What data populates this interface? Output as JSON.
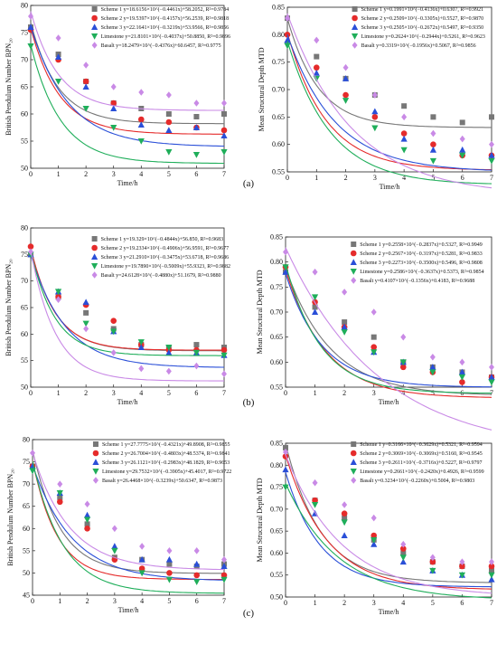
{
  "colors": {
    "Scheme 1": "#777777",
    "Scheme 2": "#e52b2b",
    "Scheme 3": "#2a4fd8",
    "Limestone": "#1fae5a",
    "Basalt": "#c98ae6"
  },
  "panel_labels": [
    "(a)",
    "(b)",
    "(c)"
  ],
  "chart_data": [
    {
      "type": "scatter",
      "panel": "a-left",
      "xlabel": "Time/h",
      "ylabel": "British Pendulum Number BPN₂₀",
      "xlim": [
        0,
        7
      ],
      "ylim": [
        50,
        80
      ],
      "xticks": [
        0,
        1,
        2,
        3,
        4,
        5,
        6,
        7
      ],
      "yticks": [
        50,
        55,
        60,
        65,
        70,
        75,
        80
      ],
      "legend_position": "top-right",
      "x": [
        0,
        1,
        2,
        3,
        4,
        5,
        6,
        7
      ],
      "series": [
        {
          "name": "Scheme 1",
          "eq": "y=18.6156×10^(−0.4461x)+58.2052,  R²=0.9784",
          "a": 18.6156,
          "b": 0.4461,
          "c": 58.2052,
          "values": [
            76,
            71,
            66,
            62,
            61,
            60,
            59.5,
            60
          ]
        },
        {
          "name": "Scheme 2",
          "eq": "y=19.5397×10^(−0.4157x)+56.2539,  R²=0.9818",
          "a": 19.5397,
          "b": 0.4157,
          "c": 56.2539,
          "values": [
            75.5,
            70,
            66,
            62,
            59,
            58.5,
            57.5,
            57
          ]
        },
        {
          "name": "Scheme 3",
          "eq": "y=22.1641×10^(−0.3219x)+53.9566,  R²=0.9856",
          "a": 22.1641,
          "b": 0.3219,
          "c": 53.9566,
          "values": [
            76,
            70.5,
            65,
            61,
            58,
            57,
            57.5,
            56
          ]
        },
        {
          "name": "Limestone",
          "eq": "y=21.8101×10^(−0.4037x)+50.8850,  R²=0.9896",
          "a": 21.8101,
          "b": 0.4037,
          "c": 50.885,
          "values": [
            72.5,
            66,
            61,
            57.5,
            55,
            53,
            52.5,
            53
          ]
        },
        {
          "name": "Basalt",
          "eq": "y=18.2479×10^(−0.4376x)+60.6457,  R²=0.9775",
          "a": 18.2479,
          "b": 0.4376,
          "c": 60.6457,
          "values": [
            78,
            74,
            69,
            65,
            64,
            63.5,
            62,
            62
          ]
        }
      ]
    },
    {
      "type": "scatter",
      "panel": "a-right",
      "xlabel": "Time/h",
      "ylabel": "Mean Structural Depth MTD",
      "xlim": [
        0,
        7
      ],
      "ylim": [
        0.55,
        0.85
      ],
      "xticks": [
        0,
        1,
        2,
        3,
        4,
        5,
        6,
        7
      ],
      "yticks": [
        0.55,
        0.6,
        0.65,
        0.7,
        0.75,
        0.8,
        0.85
      ],
      "legend_position": "top-right",
      "x": [
        0,
        1,
        2,
        3,
        4,
        5,
        6,
        7
      ],
      "series": [
        {
          "name": "Scheme 1",
          "eq": "y=0.1991×10^(−0.4136x)+0.6307,  R²=0.9921",
          "a": 0.1991,
          "b": 0.4136,
          "c": 0.6307,
          "values": [
            0.83,
            0.76,
            0.72,
            0.69,
            0.67,
            0.65,
            0.64,
            0.65
          ]
        },
        {
          "name": "Scheme 2",
          "eq": "y=0.2509×10^(−0.3305x)+0.5527,  R²=0.9870",
          "a": 0.2509,
          "b": 0.3305,
          "c": 0.5527,
          "values": [
            0.8,
            0.74,
            0.69,
            0.65,
            0.62,
            0.6,
            0.58,
            0.58
          ]
        },
        {
          "name": "Scheme 3",
          "eq": "y=0.2505×10^(−0.2672x)+0.5497,  R²=0.9350",
          "a": 0.2505,
          "b": 0.2672,
          "c": 0.5497,
          "values": [
            0.79,
            0.73,
            0.72,
            0.66,
            0.61,
            0.59,
            0.59,
            0.58
          ]
        },
        {
          "name": "Limestone",
          "eq": "y=0.2624×10^(−0.2944x)+0.5261,  R²=0.9623",
          "a": 0.2624,
          "b": 0.2944,
          "c": 0.5261,
          "values": [
            0.78,
            0.72,
            0.68,
            0.63,
            0.59,
            0.57,
            0.58,
            0.57
          ]
        },
        {
          "name": "Basalt",
          "eq": "y=0.3319×10^(−0.1956x)+0.5067,  R²=0.9856",
          "a": 0.3319,
          "b": 0.1956,
          "c": 0.5067,
          "values": [
            0.83,
            0.79,
            0.74,
            0.69,
            0.65,
            0.62,
            0.61,
            0.6
          ]
        }
      ]
    },
    {
      "type": "scatter",
      "panel": "b-left",
      "xlabel": "Time/h",
      "ylabel": "British Pendulum Number BPN₂₀",
      "xlim": [
        0,
        7
      ],
      "ylim": [
        50,
        80
      ],
      "xticks": [
        0,
        1,
        2,
        3,
        4,
        5,
        6,
        7
      ],
      "yticks": [
        50,
        55,
        60,
        65,
        70,
        75,
        80
      ],
      "legend_position": "top-right",
      "x": [
        0,
        1,
        2,
        3,
        4,
        5,
        6,
        7
      ],
      "series": [
        {
          "name": "Scheme 1",
          "eq": "y=19.329×10^(−0.4844x)+56.850,  R²=0.9683",
          "a": 19.329,
          "b": 0.4844,
          "c": 56.85,
          "values": [
            75,
            67,
            64,
            61,
            58,
            57.5,
            58,
            57.5
          ]
        },
        {
          "name": "Scheme 2",
          "eq": "y=19.2334×10^(−0.4906x)+56.9591,  R²=0.9677",
          "a": 19.2334,
          "b": 0.4906,
          "c": 56.9591,
          "values": [
            76.5,
            67,
            65.5,
            62.5,
            58,
            57,
            57,
            57
          ]
        },
        {
          "name": "Scheme 3",
          "eq": "y=21.2910×10^(−0.3475x)+53.6718,  R²=0.9686",
          "a": 21.291,
          "b": 0.3475,
          "c": 53.6718,
          "values": [
            75,
            68,
            66,
            60.5,
            57.5,
            56.5,
            56.5,
            56
          ]
        },
        {
          "name": "Limestone",
          "eq": "y=19.7890×10^(−0.5009x)+55.9323,  R²=0.9882",
          "a": 19.789,
          "b": 0.5009,
          "c": 55.9323,
          "values": [
            75,
            68,
            62,
            60.5,
            58.5,
            57.5,
            56.5,
            56
          ]
        },
        {
          "name": "Basalt",
          "eq": "y=24.6128×10^(−0.4880x)+51.1679,  R²=0.9880",
          "a": 24.6128,
          "b": 0.488,
          "c": 51.1679,
          "values": [
            75.5,
            66.5,
            61,
            56.5,
            53.5,
            53,
            54,
            52.5
          ]
        }
      ]
    },
    {
      "type": "scatter",
      "panel": "b-right",
      "xlabel": "Time/h",
      "ylabel": "Mean Structural Depth MTD",
      "xlim": [
        0,
        7
      ],
      "ylim": [
        0.55,
        0.85
      ],
      "xticks": [
        0,
        1,
        2,
        3,
        4,
        5,
        6,
        7
      ],
      "yticks": [
        0.55,
        0.6,
        0.65,
        0.7,
        0.75,
        0.8,
        0.85
      ],
      "legend_position": "top-right",
      "x": [
        0,
        1,
        2,
        3,
        4,
        5,
        6,
        7
      ],
      "series": [
        {
          "name": "Scheme 1",
          "eq": "y=0.2558×10^(−0.2837x)+0.5327,  R²=0.9949",
          "a": 0.2558,
          "b": 0.2837,
          "c": 0.5327,
          "values": [
            0.78,
            0.71,
            0.68,
            0.65,
            0.6,
            0.59,
            0.58,
            0.57
          ]
        },
        {
          "name": "Scheme 2",
          "eq": "y=0.2567×10^(−0.3197x)+0.5281,  R²=0.9833",
          "a": 0.2567,
          "b": 0.3197,
          "c": 0.5281,
          "values": [
            0.79,
            0.72,
            0.67,
            0.63,
            0.59,
            0.58,
            0.56,
            0.57
          ]
        },
        {
          "name": "Scheme 3",
          "eq": "y=0.2273×10^(−0.3500x)+0.5496,  R²=0.9808",
          "a": 0.2273,
          "b": 0.35,
          "c": 0.5496,
          "values": [
            0.78,
            0.7,
            0.67,
            0.62,
            0.6,
            0.59,
            0.58,
            0.57
          ]
        },
        {
          "name": "Limestone",
          "eq": "y=0.2586×10^(−0.3637x)+0.5373,  R²=0.9854",
          "a": 0.2586,
          "b": 0.3637,
          "c": 0.5373,
          "values": [
            0.79,
            0.73,
            0.66,
            0.62,
            0.6,
            0.58,
            0.57,
            0.56
          ]
        },
        {
          "name": "Basalt",
          "eq": "y=0.4107×10^(−0.1356x)+0.4183,  R²=0.9688",
          "a": 0.4107,
          "b": 0.1356,
          "c": 0.4183,
          "values": [
            0.82,
            0.78,
            0.74,
            0.7,
            0.65,
            0.61,
            0.6,
            0.59
          ]
        }
      ]
    },
    {
      "type": "scatter",
      "panel": "c-left",
      "xlabel": "Time/h",
      "ylabel": "British Pendulum Number BPN₂₀",
      "xlim": [
        0,
        7
      ],
      "ylim": [
        45,
        80
      ],
      "xticks": [
        0,
        1,
        2,
        3,
        4,
        5,
        6,
        7
      ],
      "yticks": [
        45,
        50,
        55,
        60,
        65,
        70,
        75,
        80
      ],
      "legend_position": "top-right",
      "x": [
        0,
        1,
        2,
        3,
        4,
        5,
        6,
        7
      ],
      "series": [
        {
          "name": "Scheme 1",
          "eq": "y=27.7775×10^(−0.4321x)+49.8908,  R²=0.9855",
          "a": 27.7775,
          "b": 0.4321,
          "c": 49.8908,
          "values": [
            74,
            67,
            61,
            53.5,
            53,
            52,
            51.5,
            52
          ]
        },
        {
          "name": "Scheme 2",
          "eq": "y=26.7004×10^(−0.4803x)+48.5374,  R²=0.9841",
          "a": 26.7004,
          "b": 0.4803,
          "c": 48.5374,
          "values": [
            74,
            66,
            60,
            53,
            51,
            50,
            49.5,
            49.5
          ]
        },
        {
          "name": "Scheme 3",
          "eq": "y=26.1121×10^(−0.2983x)+48.1829,  R²=0.9653",
          "a": 26.1121,
          "b": 0.2983,
          "c": 48.1829,
          "values": [
            74,
            68,
            63,
            56,
            53,
            53,
            52,
            51.5
          ]
        },
        {
          "name": "Limestone",
          "eq": "y=29.7532×10^(−0.3905x)+45.4017,  R²=0.9722",
          "a": 29.7532,
          "b": 0.3905,
          "c": 45.4017,
          "values": [
            73,
            68,
            62,
            55,
            50,
            48.5,
            48,
            48.5
          ]
        },
        {
          "name": "Basalt",
          "eq": "y=26.4468×10^(−0.3239x)+50.6347,  R²=0.9873",
          "a": 26.4468,
          "b": 0.3239,
          "c": 50.6347,
          "values": [
            77,
            70,
            65.5,
            60,
            56,
            55,
            55,
            53
          ]
        }
      ]
    },
    {
      "type": "scatter",
      "panel": "c-right",
      "xlabel": "Time/h",
      "ylabel": "Mean Structural Depth MTD",
      "xlim": [
        0,
        7
      ],
      "ylim": [
        0.5,
        0.85
      ],
      "xticks": [
        0,
        1,
        2,
        3,
        4,
        5,
        6,
        7
      ],
      "yticks": [
        0.5,
        0.55,
        0.6,
        0.65,
        0.7,
        0.75,
        0.8,
        0.85
      ],
      "legend_position": "top-right",
      "x": [
        0,
        1,
        2,
        3,
        4,
        5,
        6,
        7
      ],
      "series": [
        {
          "name": "Scheme 1",
          "eq": "y=0.3166×10^(−0.3629x)+0.5321,  R²=0.9594",
          "a": 0.3166,
          "b": 0.3629,
          "c": 0.5321,
          "values": [
            0.84,
            0.72,
            0.68,
            0.63,
            0.6,
            0.58,
            0.57,
            0.56
          ]
        },
        {
          "name": "Scheme 2",
          "eq": "y=0.3069×10^(−0.3069x)+0.5160,  R²=0.9545",
          "a": 0.3069,
          "b": 0.3069,
          "c": 0.516,
          "values": [
            0.82,
            0.72,
            0.69,
            0.64,
            0.61,
            0.58,
            0.57,
            0.57
          ]
        },
        {
          "name": "Scheme 3",
          "eq": "y=0.2611×10^(−0.3716x)+0.5227,  R²=0.9797",
          "a": 0.2611,
          "b": 0.3716,
          "c": 0.5227,
          "values": [
            0.79,
            0.69,
            0.64,
            0.62,
            0.58,
            0.56,
            0.55,
            0.54
          ]
        },
        {
          "name": "Limestone",
          "eq": "y=0.2661×10^(−0.2420x)+0.4926,  R²=0.9599",
          "a": 0.2661,
          "b": 0.242,
          "c": 0.4926,
          "values": [
            0.75,
            0.71,
            0.67,
            0.63,
            0.59,
            0.56,
            0.55,
            0.55
          ]
        },
        {
          "name": "Basalt",
          "eq": "y=0.3234×10^(−0.2260x)+0.5004,  R²=0.9803",
          "a": 0.3234,
          "b": 0.226,
          "c": 0.5004,
          "values": [
            0.83,
            0.76,
            0.71,
            0.68,
            0.62,
            0.59,
            0.58,
            0.58
          ]
        }
      ]
    }
  ]
}
